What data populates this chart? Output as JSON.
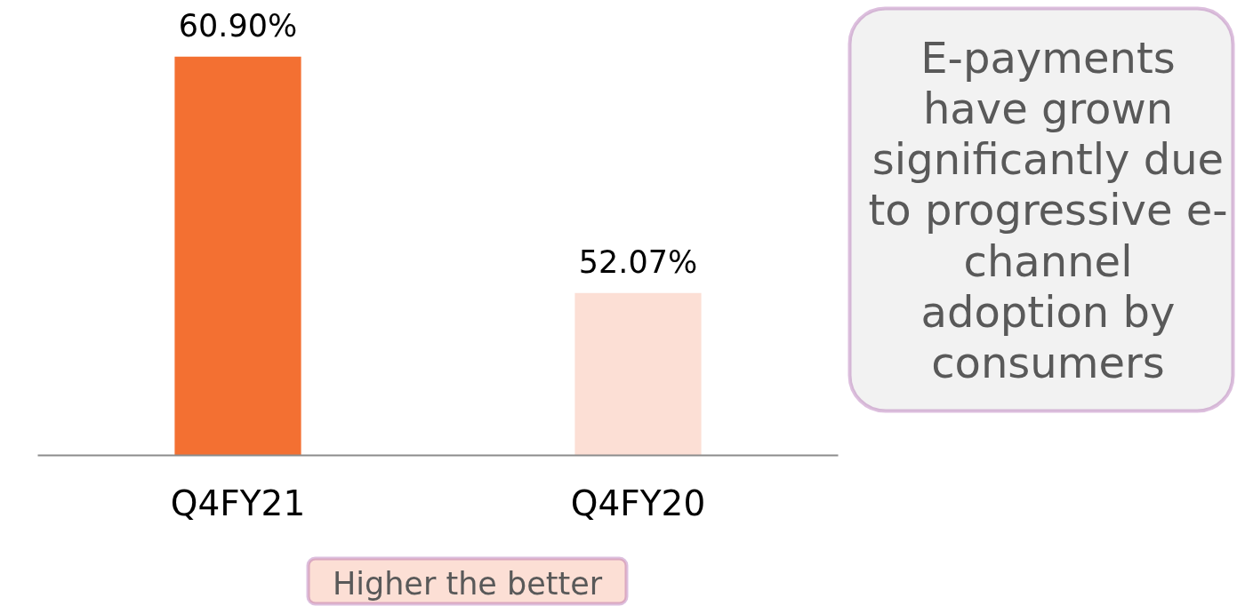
{
  "chart_data": {
    "type": "bar",
    "categories": [
      "Q4FY21",
      "Q4FY20"
    ],
    "values": [
      60.9,
      52.07
    ],
    "colors": [
      "#f37032",
      "#fcdfd5"
    ],
    "value_labels": [
      "60.90%",
      "52.07%"
    ],
    "ylim": [
      46,
      63
    ],
    "tick_labels": "x",
    "annotations": [
      "E-payments\nhave grown\nsignificantly due\nto progressive e-\nchannel\nadoption by\nconsumers",
      "Higher the better"
    ]
  }
}
